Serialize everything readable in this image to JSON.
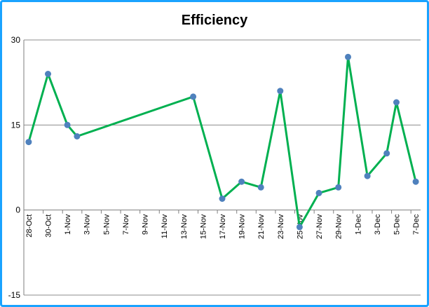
{
  "chart_data": {
    "type": "line",
    "title": "Efficiency",
    "xlabel": "",
    "ylabel": "",
    "ylim": [
      -15,
      30
    ],
    "yticks": [
      -15,
      0,
      15,
      30
    ],
    "grid": "horizontal",
    "legend": "none",
    "categories": [
      "28-Oct",
      "30-Oct",
      "1-Nov",
      "3-Nov",
      "5-Nov",
      "7-Nov",
      "9-Nov",
      "11-Nov",
      "13-Nov",
      "15-Nov",
      "17-Nov",
      "19-Nov",
      "21-Nov",
      "23-Nov",
      "25-Nov",
      "27-Nov",
      "29-Nov",
      "1-Dec",
      "3-Dec",
      "5-Dec",
      "7-Dec"
    ],
    "date_range": [
      "2023-10-28",
      "2023-12-07"
    ],
    "series": [
      {
        "points": [
          {
            "x": "2023-10-28",
            "y": 12
          },
          {
            "x": "2023-10-30",
            "y": 24
          },
          {
            "x": "2023-11-01",
            "y": 15
          },
          {
            "x": "2023-11-02",
            "y": 13
          },
          {
            "x": "2023-11-14",
            "y": 20
          },
          {
            "x": "2023-11-17",
            "y": 2
          },
          {
            "x": "2023-11-19",
            "y": 5
          },
          {
            "x": "2023-11-21",
            "y": 4
          },
          {
            "x": "2023-11-23",
            "y": 21
          },
          {
            "x": "2023-11-25",
            "y": -3
          },
          {
            "x": "2023-11-27",
            "y": 3
          },
          {
            "x": "2023-11-29",
            "y": 4
          },
          {
            "x": "2023-11-30",
            "y": 27
          },
          {
            "x": "2023-12-02",
            "y": 6
          },
          {
            "x": "2023-12-04",
            "y": 10
          },
          {
            "x": "2023-12-05",
            "y": 19
          },
          {
            "x": "2023-12-07",
            "y": 5
          }
        ]
      }
    ],
    "colors": {
      "line": "#00b050",
      "marker": "#4f81bd",
      "grid": "#8c8c8c",
      "border": "#1aa3ff"
    }
  }
}
